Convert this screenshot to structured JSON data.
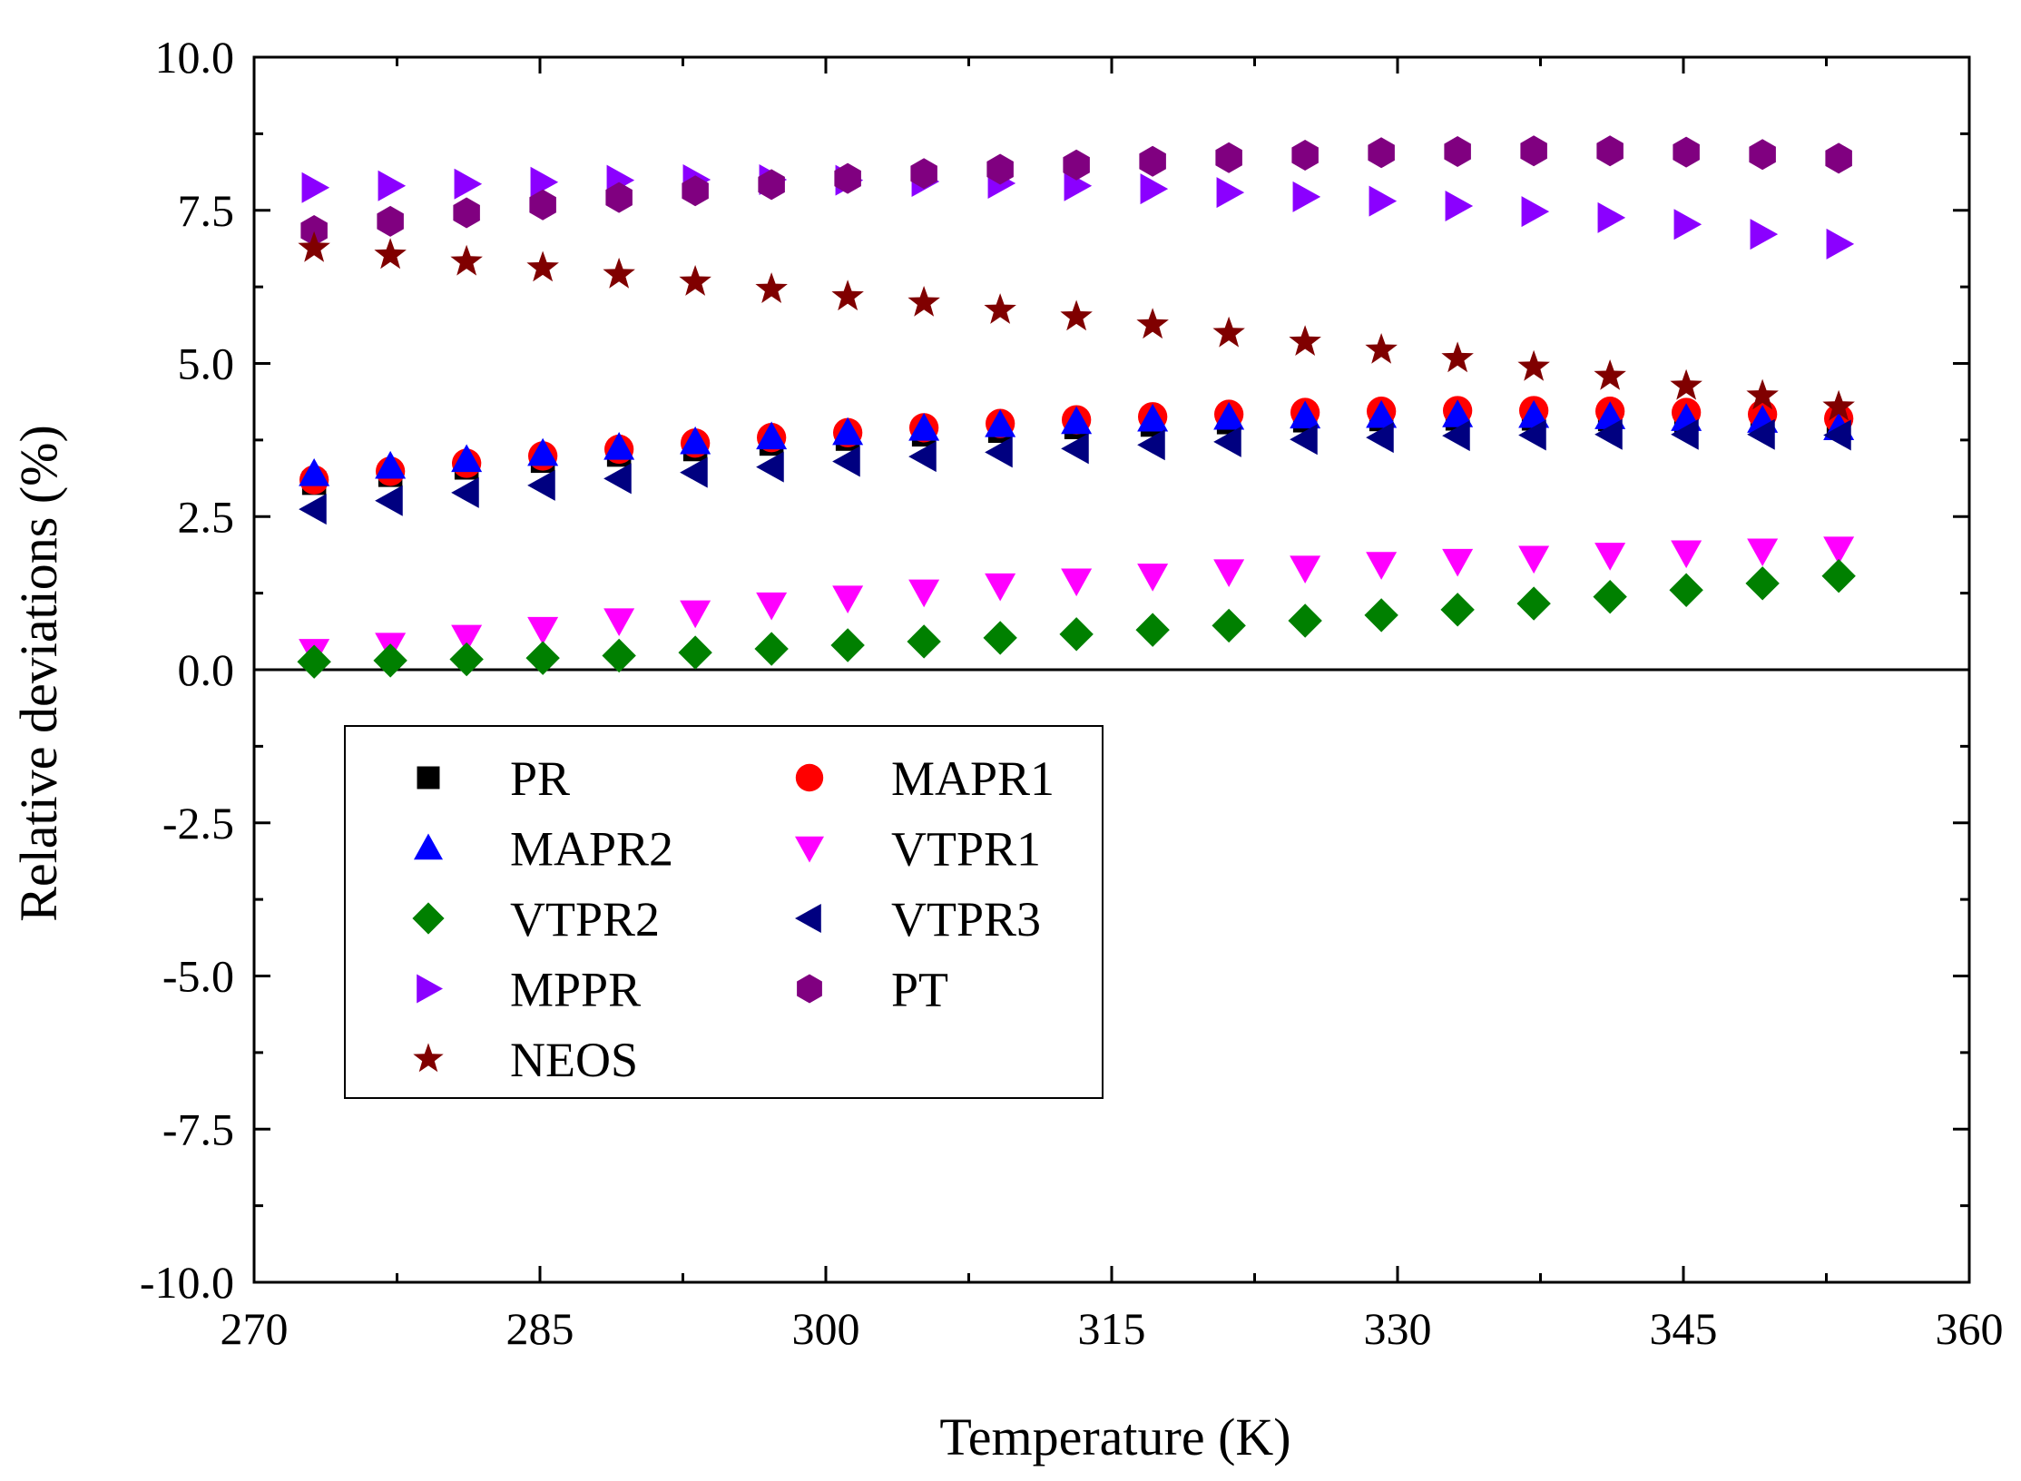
{
  "chart_data": {
    "type": "scatter",
    "xlabel": "Temperature (K)",
    "ylabel": "Relative deviations (%)",
    "xlim": [
      270,
      360
    ],
    "ylim": [
      -10,
      10
    ],
    "x_ticks": [
      270,
      285,
      300,
      315,
      330,
      345,
      360
    ],
    "y_ticks": [
      10,
      7.5,
      5,
      2.5,
      0,
      -2.5,
      -5,
      -7.5,
      -10
    ],
    "x_tick_labels": [
      "270",
      "285",
      "300",
      "315",
      "330",
      "345",
      "360"
    ],
    "y_tick_labels": [
      "10.0",
      "7.5",
      "5.0",
      "2.5",
      "0.0",
      "-2.5",
      "-5.0",
      "-7.5",
      "-10.0"
    ],
    "zero_line": true,
    "grid": false,
    "legend_position": "lower-left",
    "x": [
      273.15,
      277.15,
      281.15,
      285.15,
      289.15,
      293.15,
      297.15,
      301.15,
      305.15,
      309.15,
      313.15,
      317.15,
      321.15,
      325.15,
      329.15,
      333.15,
      337.15,
      341.15,
      345.15,
      349.15,
      353.15
    ],
    "series": [
      {
        "name": "PR",
        "marker": "square",
        "color": "#000000",
        "values": [
          3.05,
          3.18,
          3.3,
          3.41,
          3.51,
          3.6,
          3.69,
          3.77,
          3.84,
          3.9,
          3.96,
          4.0,
          4.04,
          4.07,
          4.09,
          4.1,
          4.1,
          4.09,
          4.07,
          4.04,
          4.0
        ]
      },
      {
        "name": "MAPR1",
        "marker": "circle",
        "color": "#ff0000",
        "values": [
          3.1,
          3.24,
          3.37,
          3.49,
          3.6,
          3.7,
          3.79,
          3.87,
          3.95,
          4.02,
          4.08,
          4.13,
          4.17,
          4.2,
          4.22,
          4.23,
          4.23,
          4.22,
          4.2,
          4.17,
          4.1
        ]
      },
      {
        "name": "MAPR2",
        "marker": "triangle-up",
        "color": "#0000ff",
        "values": [
          3.2,
          3.32,
          3.43,
          3.53,
          3.63,
          3.72,
          3.8,
          3.87,
          3.94,
          4.0,
          4.05,
          4.09,
          4.12,
          4.14,
          4.15,
          4.16,
          4.15,
          4.13,
          4.1,
          4.07,
          3.95
        ]
      },
      {
        "name": "VTPR1",
        "marker": "triangle-down",
        "color": "#ff00ff",
        "values": [
          0.3,
          0.4,
          0.53,
          0.66,
          0.8,
          0.93,
          1.06,
          1.17,
          1.27,
          1.37,
          1.45,
          1.53,
          1.6,
          1.66,
          1.72,
          1.77,
          1.82,
          1.87,
          1.91,
          1.94,
          1.97
        ]
      },
      {
        "name": "VTPR2",
        "marker": "diamond",
        "color": "#008000",
        "values": [
          0.13,
          0.15,
          0.17,
          0.19,
          0.23,
          0.28,
          0.34,
          0.4,
          0.46,
          0.52,
          0.58,
          0.65,
          0.72,
          0.8,
          0.89,
          0.98,
          1.08,
          1.19,
          1.3,
          1.41,
          1.53
        ]
      },
      {
        "name": "VTPR3",
        "marker": "triangle-left",
        "color": "#000080",
        "values": [
          2.62,
          2.76,
          2.89,
          3.01,
          3.12,
          3.22,
          3.31,
          3.4,
          3.48,
          3.55,
          3.61,
          3.67,
          3.72,
          3.76,
          3.79,
          3.82,
          3.83,
          3.84,
          3.84,
          3.84,
          3.83
        ]
      },
      {
        "name": "MPPR",
        "marker": "triangle-right",
        "color": "#8b00ff",
        "values": [
          7.87,
          7.9,
          7.93,
          7.96,
          7.99,
          8.0,
          8.0,
          7.99,
          7.97,
          7.94,
          7.9,
          7.85,
          7.79,
          7.72,
          7.65,
          7.57,
          7.48,
          7.38,
          7.27,
          7.11,
          6.95
        ]
      },
      {
        "name": "PT",
        "marker": "hexagon",
        "color": "#800080",
        "values": [
          7.17,
          7.32,
          7.46,
          7.59,
          7.71,
          7.82,
          7.92,
          8.02,
          8.1,
          8.17,
          8.24,
          8.3,
          8.36,
          8.4,
          8.44,
          8.46,
          8.47,
          8.47,
          8.45,
          8.41,
          8.35
        ]
      },
      {
        "name": "NEOS",
        "marker": "star",
        "color": "#800000",
        "values": [
          6.88,
          6.77,
          6.66,
          6.56,
          6.45,
          6.33,
          6.21,
          6.09,
          5.99,
          5.87,
          5.76,
          5.63,
          5.49,
          5.35,
          5.22,
          5.08,
          4.94,
          4.79,
          4.63,
          4.47,
          4.29
        ]
      }
    ]
  }
}
